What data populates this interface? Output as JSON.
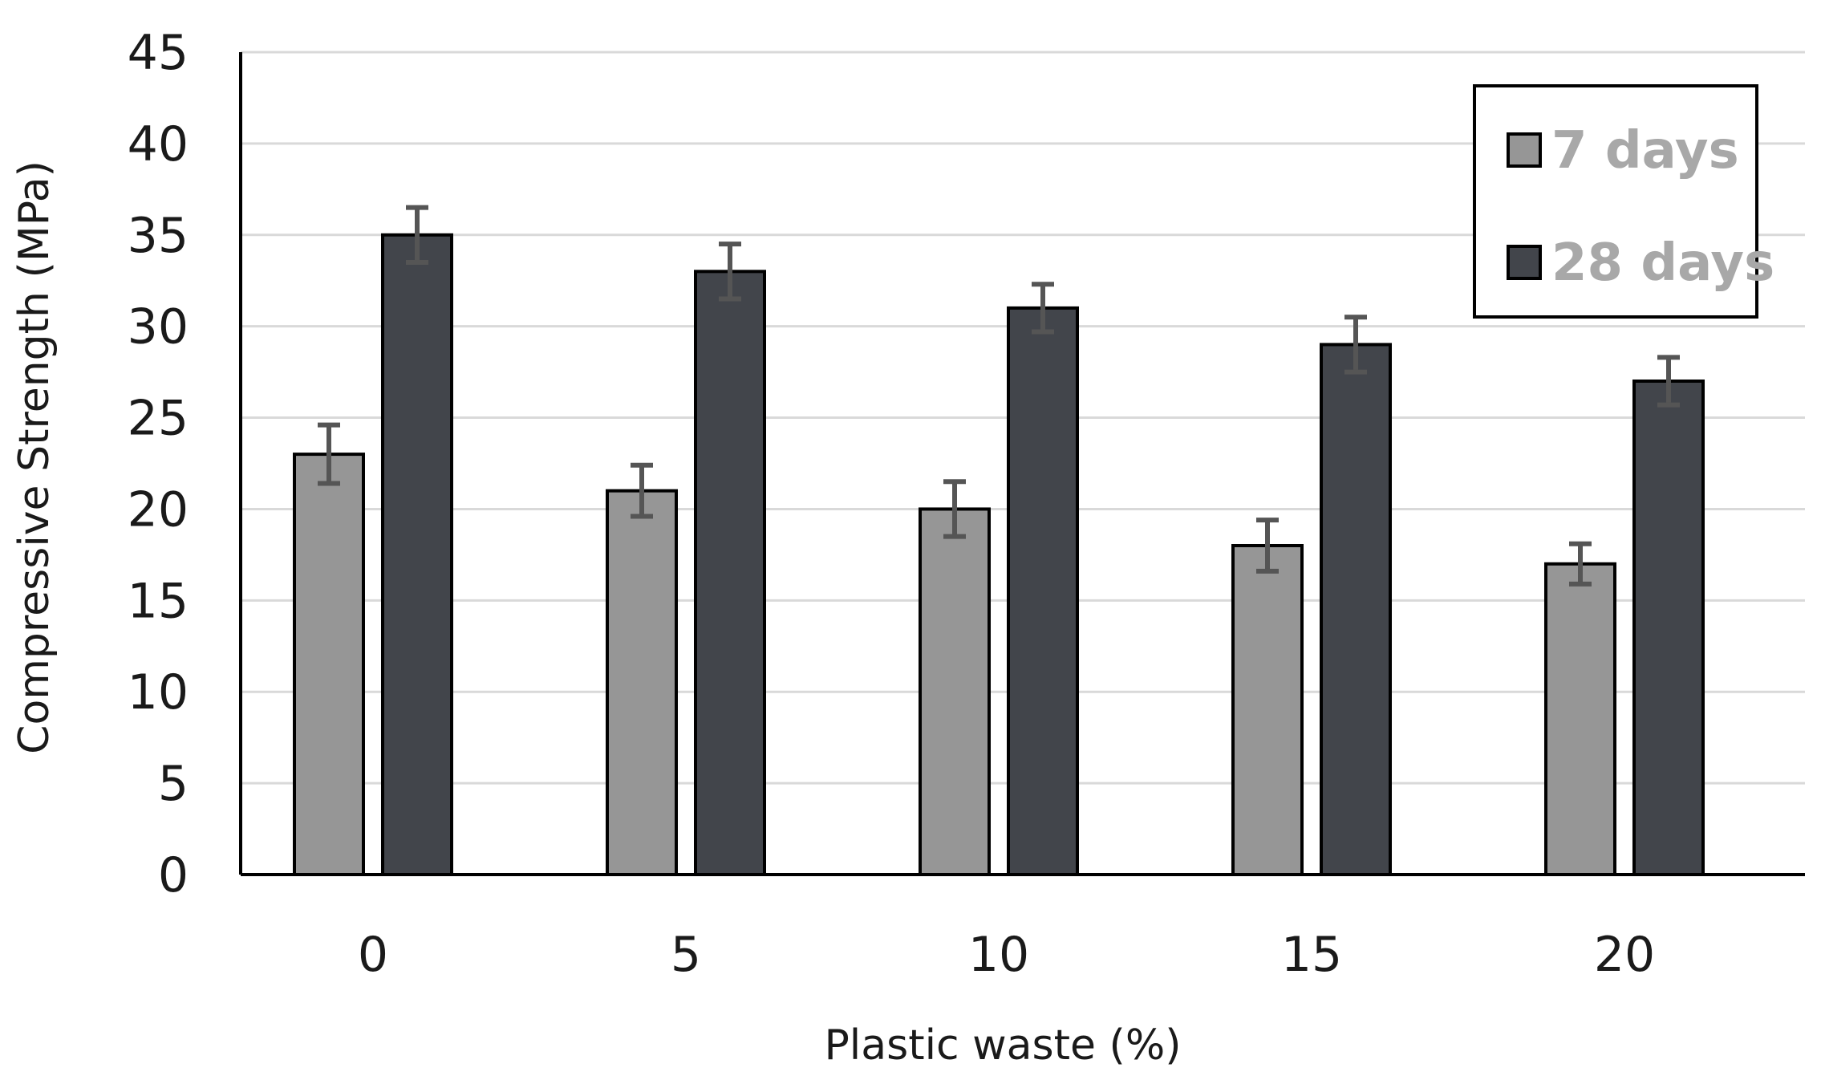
{
  "chart_data": {
    "type": "bar",
    "title": "",
    "xlabel": "Plastic waste (%)",
    "ylabel": "Compressive Strength (MPa)",
    "ylim": [
      0,
      45
    ],
    "yticks": [
      0,
      5,
      10,
      15,
      20,
      25,
      30,
      35,
      40,
      45
    ],
    "grid": true,
    "legend_position": "top-right",
    "categories": [
      "0",
      "5",
      "10",
      "15",
      "20"
    ],
    "series": [
      {
        "name": "7 days",
        "color": "#969696",
        "values": [
          23,
          21,
          20,
          18,
          17
        ],
        "errors": [
          1.6,
          1.4,
          1.5,
          1.4,
          1.1
        ]
      },
      {
        "name": "28 days",
        "color": "#42454b",
        "values": [
          35,
          33,
          31,
          29,
          27
        ],
        "errors": [
          1.5,
          1.5,
          1.3,
          1.5,
          1.3
        ]
      }
    ]
  }
}
